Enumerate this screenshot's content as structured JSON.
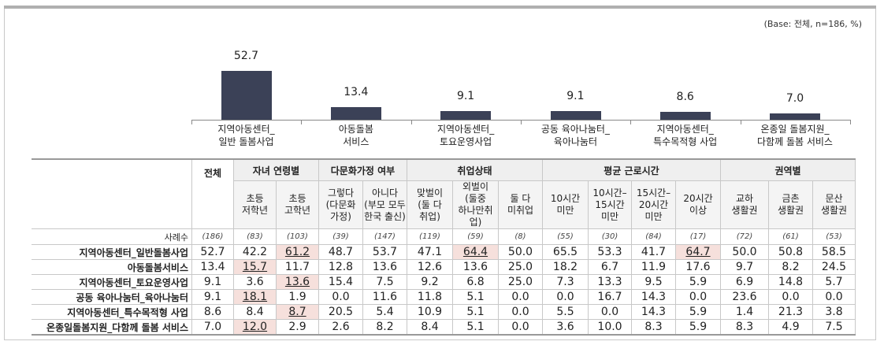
{
  "base_note": "(Base: 전체, n=186, %)",
  "chart_data": {
    "type": "bar",
    "categories": [
      [
        "지역아동센터_",
        "일반 돌봄사업"
      ],
      [
        "아동돌봄",
        "서비스"
      ],
      [
        "지역아동센터_",
        "토요운영사업"
      ],
      [
        "공동 육아나눔터_",
        "육아나눔터"
      ],
      [
        "지역아동센터_",
        "특수목적형 사업"
      ],
      [
        "온종일 돌봄지원_",
        "다함께 돌봄 서비스"
      ]
    ],
    "values": [
      52.7,
      13.4,
      9.1,
      9.1,
      8.6,
      7.0
    ],
    "value_labels": [
      "52.7",
      "13.4",
      "9.1",
      "9.1",
      "8.6",
      "7.0"
    ],
    "bar_color": "#3b4157",
    "ylim": [
      0,
      60
    ],
    "grid": false
  },
  "table": {
    "total_label": "전체",
    "groups": [
      {
        "label": "자녀 연령별",
        "span": 2
      },
      {
        "label": "다문화가정 여부",
        "span": 2
      },
      {
        "label": "취업상태",
        "span": 3
      },
      {
        "label": "평균 근로시간",
        "span": 4
      },
      {
        "label": "권역별",
        "span": 3
      }
    ],
    "subheaders": [
      [
        "초등",
        "저학년"
      ],
      [
        "초등",
        "고학년"
      ],
      [
        "그렇다",
        "(다문화",
        "가정)"
      ],
      [
        "아니다",
        "(부모 모두",
        "한국 출신)"
      ],
      [
        "맞벌이",
        "(둘 다",
        "취업)"
      ],
      [
        "외벌이",
        "(둘중",
        "하나만취업)"
      ],
      [
        "둘 다",
        "미취업"
      ],
      [
        "10시간",
        "미만"
      ],
      [
        "10시간–",
        "15시간",
        "미만"
      ],
      [
        "15시간–",
        "20시간",
        "미만"
      ],
      [
        "20시간",
        "이상"
      ],
      [
        "교하",
        "생활권"
      ],
      [
        "금촌",
        "생활권"
      ],
      [
        "문산",
        "생활권"
      ]
    ],
    "n_label": "사례수",
    "n": [
      "(186)",
      "(83)",
      "(103)",
      "(39)",
      "(147)",
      "(119)",
      "(59)",
      "(8)",
      "(55)",
      "(30)",
      "(84)",
      "(17)",
      "(72)",
      "(61)",
      "(53)"
    ],
    "highlight_color": "#f6e0dc",
    "rows": [
      {
        "label": "지역아동센터_일반돌봄사업",
        "values": [
          "52.7",
          "42.2",
          "61.2",
          "48.7",
          "53.7",
          "47.1",
          "64.4",
          "50.0",
          "65.5",
          "53.3",
          "41.7",
          "64.7",
          "50.0",
          "50.8",
          "58.5"
        ],
        "highlight": [
          2,
          6,
          11
        ]
      },
      {
        "label": "아동돌봄서비스",
        "values": [
          "13.4",
          "15.7",
          "11.7",
          "12.8",
          "13.6",
          "12.6",
          "13.6",
          "25.0",
          "18.2",
          "6.7",
          "11.9",
          "17.6",
          "9.7",
          "8.2",
          "24.5"
        ],
        "highlight": [
          1
        ]
      },
      {
        "label": "지역아동센터_토요운영사업",
        "values": [
          "9.1",
          "3.6",
          "13.6",
          "15.4",
          "7.5",
          "9.2",
          "6.8",
          "25.0",
          "7.3",
          "13.3",
          "9.5",
          "5.9",
          "6.9",
          "14.8",
          "5.7"
        ],
        "highlight": [
          2
        ]
      },
      {
        "label": "공동 육아나눔터_육아나눔터",
        "values": [
          "9.1",
          "18.1",
          "1.9",
          "0.0",
          "11.6",
          "11.8",
          "5.1",
          "0.0",
          "0.0",
          "16.7",
          "14.3",
          "0.0",
          "23.6",
          "0.0",
          "0.0"
        ],
        "highlight": [
          1
        ]
      },
      {
        "label": "지역아동센터_특수목적형 사업",
        "values": [
          "8.6",
          "8.4",
          "8.7",
          "20.5",
          "5.4",
          "10.9",
          "5.1",
          "0.0",
          "5.5",
          "0.0",
          "14.3",
          "5.9",
          "1.4",
          "21.3",
          "3.8"
        ],
        "highlight": [
          2
        ]
      },
      {
        "label": "온종일돌봄지원_다함께 돌봄 서비스",
        "values": [
          "7.0",
          "12.0",
          "2.9",
          "2.6",
          "8.2",
          "8.4",
          "5.1",
          "0.0",
          "3.6",
          "10.0",
          "8.3",
          "5.9",
          "8.3",
          "4.9",
          "7.5"
        ],
        "highlight": [
          1
        ]
      }
    ]
  }
}
